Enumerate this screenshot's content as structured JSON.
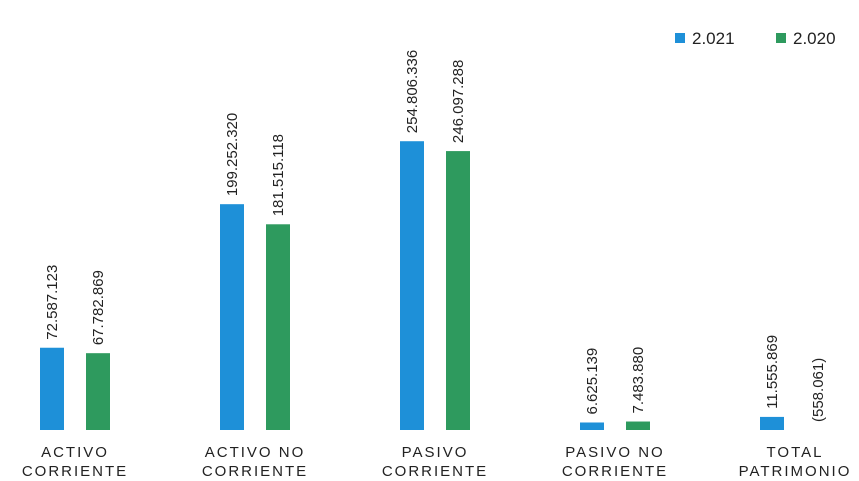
{
  "chart_data": {
    "type": "bar",
    "categories": [
      [
        "ACTIVO",
        "CORRIENTE"
      ],
      [
        "ACTIVO NO",
        "CORRIENTE"
      ],
      [
        "PASIVO",
        "CORRIENTE"
      ],
      [
        "PASIVO NO",
        "CORRIENTE"
      ],
      [
        "TOTAL",
        "PATRIMONIO"
      ]
    ],
    "series": [
      {
        "name": "2.021",
        "color": "#1e90d8",
        "values": [
          72587123,
          199252320,
          254806336,
          6625139,
          11555869
        ],
        "labels": [
          "72.587.123",
          "199.252.320",
          "254.806.336",
          "6.625.139",
          "11.555.869"
        ]
      },
      {
        "name": "2.020",
        "color": "#2e9a5e",
        "values": [
          67782869,
          181515118,
          246097288,
          7483880,
          -558061
        ],
        "labels": [
          "67.782.869",
          "181.515.118",
          "246.097.288",
          "7.483.880",
          "(558.061)"
        ]
      }
    ],
    "ylim": [
      0,
      270000000
    ],
    "grid": false,
    "legend": "top-right",
    "title": "",
    "xlabel": "",
    "ylabel": ""
  }
}
